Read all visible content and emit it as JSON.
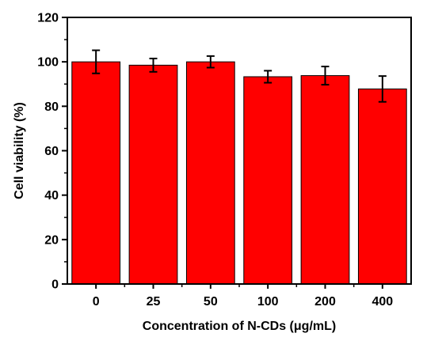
{
  "chart_data": {
    "type": "bar",
    "categories": [
      "0",
      "25",
      "50",
      "100",
      "200",
      "400"
    ],
    "values": [
      100,
      98.5,
      100,
      93.3,
      93.8,
      87.8
    ],
    "errors": [
      5.2,
      3.0,
      2.6,
      2.7,
      4.1,
      5.8
    ],
    "xlabel": "Concentration of N-CDs (μg/mL)",
    "ylabel": "Cell viability (%)",
    "ylim": [
      0,
      120
    ],
    "yticks": [
      0,
      20,
      40,
      60,
      80,
      100,
      120
    ],
    "grid": false,
    "legend": "none",
    "bar_color": "#ff0000",
    "bar_edge_color": "#000000",
    "error_bar_color": "#000000"
  }
}
